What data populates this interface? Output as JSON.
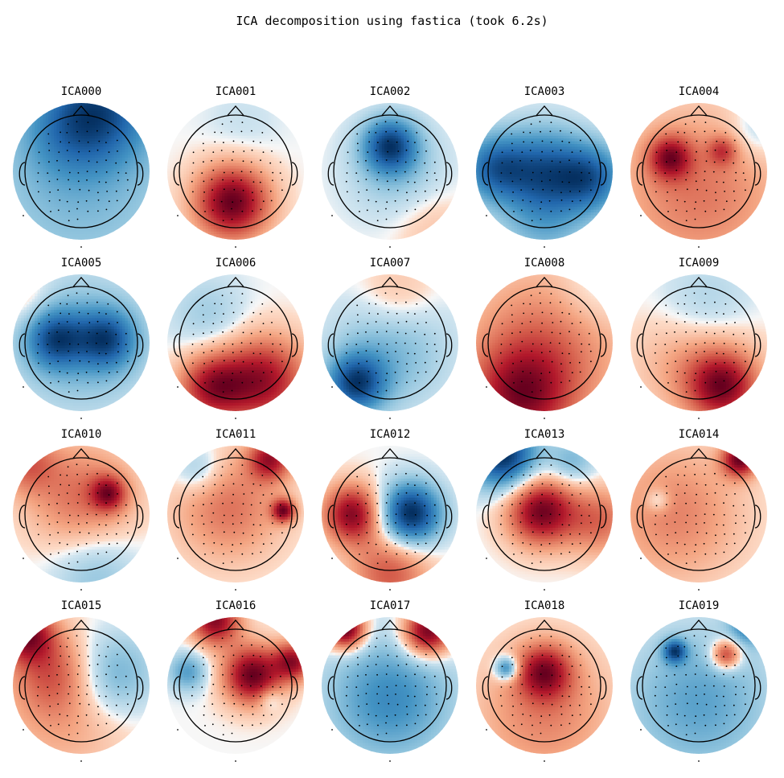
{
  "chart_data": {
    "type": "heatmap",
    "title": "ICA decomposition using fastica (took 6.2s)",
    "colormap": {
      "negative": "#053061",
      "mid": "#f7f7f7",
      "positive": "#67001f"
    },
    "components": [
      {
        "name": "ICA000",
        "sources": [
          {
            "x": 0.3,
            "y": 0.95,
            "w": -1.0,
            "s": 0.55
          },
          {
            "x": -0.2,
            "y": 0.6,
            "w": -0.45,
            "s": 0.5
          },
          {
            "x": 0,
            "y": -0.2,
            "w": -0.5,
            "s": 1.1
          }
        ]
      },
      {
        "name": "ICA001",
        "sources": [
          {
            "x": -0.05,
            "y": -0.45,
            "w": 1.0,
            "s": 0.38
          },
          {
            "x": 0.1,
            "y": 0.7,
            "w": -0.08,
            "s": 0.4
          }
        ]
      },
      {
        "name": "ICA002",
        "sources": [
          {
            "x": 0.0,
            "y": 0.38,
            "w": -1.0,
            "s": 0.28
          },
          {
            "x": 0.1,
            "y": 0.0,
            "w": -0.3,
            "s": 0.5
          },
          {
            "x": 0.6,
            "y": -0.8,
            "w": 0.18,
            "s": 0.4
          }
        ]
      },
      {
        "name": "ICA003",
        "sources": [
          {
            "x": 0.0,
            "y": 0.0,
            "w": -1.0,
            "s": 0.45
          },
          {
            "x": -0.75,
            "y": 0.05,
            "w": -0.9,
            "s": 0.35
          },
          {
            "x": 0.7,
            "y": -0.1,
            "w": -0.9,
            "s": 0.35
          },
          {
            "x": 0,
            "y": -0.8,
            "w": -0.4,
            "s": 0.45
          }
        ]
      },
      {
        "name": "ICA004",
        "sources": [
          {
            "x": -0.42,
            "y": 0.2,
            "w": 1.0,
            "s": 0.22
          },
          {
            "x": 0.35,
            "y": 0.3,
            "w": 0.6,
            "s": 0.15
          },
          {
            "x": 0.0,
            "y": -0.3,
            "w": 0.6,
            "s": 0.85
          },
          {
            "x": 0.85,
            "y": 0.6,
            "w": -0.3,
            "s": 0.3
          }
        ]
      },
      {
        "name": "ICA005",
        "sources": [
          {
            "x": -0.38,
            "y": 0.05,
            "w": -0.9,
            "s": 0.3
          },
          {
            "x": 0.38,
            "y": 0.05,
            "w": -0.9,
            "s": 0.3
          },
          {
            "x": 0.0,
            "y": 0.0,
            "w": -0.5,
            "s": 0.7
          },
          {
            "x": -0.9,
            "y": 0.7,
            "w": 0.3,
            "s": 0.3
          }
        ]
      },
      {
        "name": "ICA006",
        "sources": [
          {
            "x": 0.4,
            "y": -0.55,
            "w": 1.0,
            "s": 0.45
          },
          {
            "x": -0.35,
            "y": -0.65,
            "w": 0.9,
            "s": 0.35
          },
          {
            "x": -0.4,
            "y": 0.4,
            "w": -0.25,
            "s": 0.4
          }
        ]
      },
      {
        "name": "ICA007",
        "sources": [
          {
            "x": -0.5,
            "y": -0.6,
            "w": -1.0,
            "s": 0.3
          },
          {
            "x": 0.0,
            "y": -0.1,
            "w": -0.4,
            "s": 0.6
          },
          {
            "x": 0.1,
            "y": 0.7,
            "w": 0.25,
            "s": 0.4
          }
        ]
      },
      {
        "name": "ICA008",
        "sources": [
          {
            "x": -0.35,
            "y": -0.8,
            "w": 0.9,
            "s": 0.5
          },
          {
            "x": 0.0,
            "y": -0.1,
            "w": 0.6,
            "s": 0.8
          },
          {
            "x": 0.7,
            "y": 0.7,
            "w": -0.2,
            "s": 0.4
          }
        ]
      },
      {
        "name": "ICA009",
        "sources": [
          {
            "x": 0.35,
            "y": -0.65,
            "w": 1.0,
            "s": 0.35
          },
          {
            "x": 0.0,
            "y": -0.2,
            "w": 0.45,
            "s": 0.6
          },
          {
            "x": 0.1,
            "y": 0.45,
            "w": -0.35,
            "s": 0.5
          }
        ]
      },
      {
        "name": "ICA010",
        "sources": [
          {
            "x": 0.4,
            "y": 0.3,
            "w": 0.9,
            "s": 0.18
          },
          {
            "x": 0.0,
            "y": 0.25,
            "w": 0.6,
            "s": 0.55
          },
          {
            "x": 0.2,
            "y": -0.85,
            "w": -0.35,
            "s": 0.45
          },
          {
            "x": -0.8,
            "y": 0.75,
            "w": 0.6,
            "s": 0.3
          }
        ]
      },
      {
        "name": "ICA011",
        "sources": [
          {
            "x": 0.7,
            "y": 0.05,
            "w": 0.9,
            "s": 0.12
          },
          {
            "x": -0.1,
            "y": 0.1,
            "w": 0.45,
            "s": 0.55
          },
          {
            "x": 0.5,
            "y": 0.8,
            "w": 0.8,
            "s": 0.22
          },
          {
            "x": -0.55,
            "y": 0.65,
            "w": -0.3,
            "s": 0.25
          }
        ]
      },
      {
        "name": "ICA012",
        "sources": [
          {
            "x": 0.3,
            "y": 0.0,
            "w": -1.0,
            "s": 0.32
          },
          {
            "x": -0.55,
            "y": 0.0,
            "w": 0.85,
            "s": 0.3
          },
          {
            "x": 0.0,
            "y": -0.85,
            "w": 0.5,
            "s": 0.4
          }
        ]
      },
      {
        "name": "ICA013",
        "sources": [
          {
            "x": -0.6,
            "y": 0.85,
            "w": -0.9,
            "s": 0.35
          },
          {
            "x": -0.05,
            "y": 0.05,
            "w": 0.85,
            "s": 0.35
          },
          {
            "x": 0.4,
            "y": 0.75,
            "w": -0.3,
            "s": 0.25
          },
          {
            "x": 0.8,
            "y": -0.1,
            "w": 0.4,
            "s": 0.35
          }
        ]
      },
      {
        "name": "ICA014",
        "sources": [
          {
            "x": 0.6,
            "y": 0.8,
            "w": 1.0,
            "s": 0.18
          },
          {
            "x": -0.35,
            "y": 0.0,
            "w": 0.4,
            "s": 0.7
          },
          {
            "x": -0.6,
            "y": 0.2,
            "w": -0.3,
            "s": 0.12
          }
        ]
      },
      {
        "name": "ICA015",
        "sources": [
          {
            "x": -0.8,
            "y": 0.75,
            "w": 1.0,
            "s": 0.28
          },
          {
            "x": 0.45,
            "y": 0.15,
            "w": -0.55,
            "s": 0.45
          },
          {
            "x": -0.4,
            "y": 0.2,
            "w": 0.45,
            "s": 0.4
          },
          {
            "x": -0.2,
            "y": -0.3,
            "w": 0.35,
            "s": 0.7
          }
        ]
      },
      {
        "name": "ICA016",
        "sources": [
          {
            "x": 0.25,
            "y": 0.15,
            "w": 1.0,
            "s": 0.3
          },
          {
            "x": -0.3,
            "y": 0.95,
            "w": 0.9,
            "s": 0.25
          },
          {
            "x": 0.85,
            "y": 0.35,
            "w": 0.8,
            "s": 0.2
          },
          {
            "x": -0.7,
            "y": 0.2,
            "w": -0.45,
            "s": 0.2
          },
          {
            "x": 0.5,
            "y": -0.2,
            "w": -0.25,
            "s": 0.12
          }
        ]
      },
      {
        "name": "ICA017",
        "sources": [
          {
            "x": -0.65,
            "y": 0.82,
            "w": 1.0,
            "s": 0.2
          },
          {
            "x": 0.55,
            "y": 0.78,
            "w": 0.95,
            "s": 0.25
          },
          {
            "x": 0.0,
            "y": -0.2,
            "w": -0.5,
            "s": 0.65
          }
        ]
      },
      {
        "name": "ICA018",
        "sources": [
          {
            "x": -0.55,
            "y": 0.25,
            "w": -1.0,
            "s": 0.12
          },
          {
            "x": 0.0,
            "y": 0.2,
            "w": 1.0,
            "s": 0.28
          },
          {
            "x": 0.0,
            "y": -0.4,
            "w": 0.5,
            "s": 0.7
          }
        ]
      },
      {
        "name": "ICA019",
        "sources": [
          {
            "x": 0.4,
            "y": 0.45,
            "w": 0.9,
            "s": 0.15
          },
          {
            "x": -0.35,
            "y": 0.5,
            "w": -0.9,
            "s": 0.12
          },
          {
            "x": 0.0,
            "y": -0.25,
            "w": -0.5,
            "s": 0.75
          },
          {
            "x": 0.75,
            "y": 0.9,
            "w": -0.7,
            "s": 0.2
          }
        ]
      }
    ]
  }
}
